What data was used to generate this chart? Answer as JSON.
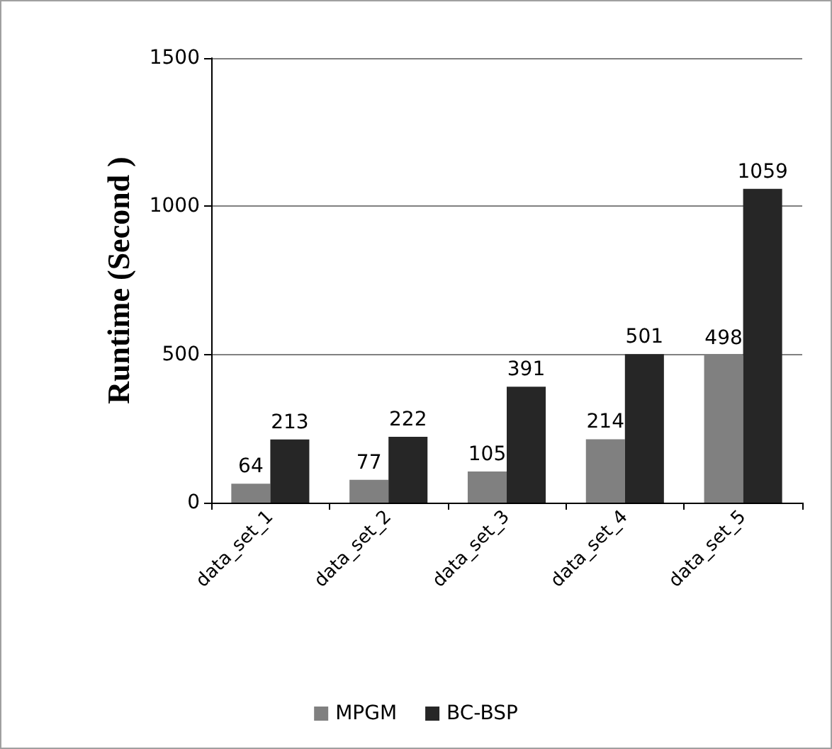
{
  "chart_data": {
    "type": "bar",
    "ylabel": "Runtime (Second )",
    "categories": [
      "data_set_1",
      "data_set_2",
      "data_set_3",
      "data_set_4",
      "data_set_5"
    ],
    "series": [
      {
        "name": "MPGM",
        "color": "#808080",
        "values": [
          64,
          77,
          105,
          214,
          498
        ]
      },
      {
        "name": "BC-BSP",
        "color": "#262626",
        "values": [
          213,
          222,
          391,
          501,
          1059
        ]
      }
    ],
    "ylim": [
      0,
      1500
    ],
    "yticks": [
      0,
      500,
      1000,
      1500
    ],
    "grid": "y",
    "legend": "bottom",
    "data_labels": true
  }
}
